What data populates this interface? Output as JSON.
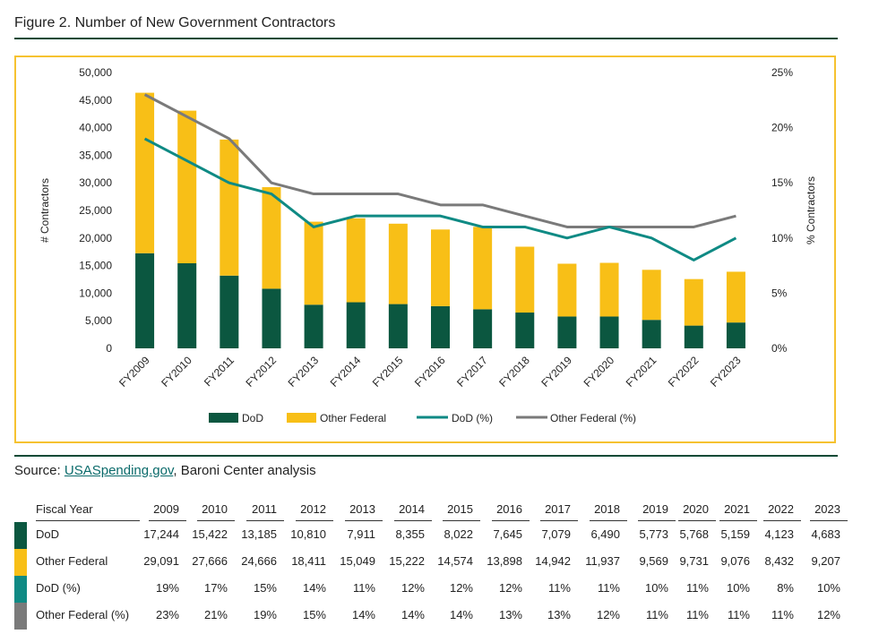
{
  "figure_title": "Figure 2. Number of New Government Contractors",
  "colors": {
    "dod": "#0b5740",
    "other_federal": "#f8bf17",
    "dod_pct": "#0f8a84",
    "other_federal_pct": "#7a7a7a",
    "frame": "#f6c230",
    "rule": "#0b4a36"
  },
  "source": {
    "label": "Source:",
    "link_text": "USASpending.gov",
    "rest": ", Baroni Center analysis"
  },
  "chart_data": {
    "type": "bar",
    "stacked": true,
    "categories": [
      "FY2009",
      "FY2010",
      "FY2011",
      "FY2012",
      "FY2013",
      "FY2014",
      "FY2015",
      "FY2016",
      "FY2017",
      "FY2018",
      "FY2019",
      "FY2020",
      "FY2021",
      "FY2022",
      "FY2023"
    ],
    "series": [
      {
        "name": "DoD",
        "type": "bar",
        "axis": "left",
        "values": [
          17244,
          15422,
          13185,
          10810,
          7911,
          8355,
          8022,
          7645,
          7079,
          6490,
          5773,
          5768,
          5159,
          4123,
          4683
        ]
      },
      {
        "name": "Other Federal",
        "type": "bar",
        "axis": "left",
        "values": [
          29091,
          27666,
          24666,
          18411,
          15049,
          15222,
          14574,
          13898,
          14942,
          11937,
          9569,
          9731,
          9076,
          8432,
          9207
        ]
      },
      {
        "name": "DoD (%)",
        "type": "line",
        "axis": "right",
        "values": [
          19,
          17,
          15,
          14,
          11,
          12,
          12,
          12,
          11,
          11,
          10,
          11,
          10,
          8,
          10
        ]
      },
      {
        "name": "Other Federal (%)",
        "type": "line",
        "axis": "right",
        "values": [
          23,
          21,
          19,
          15,
          14,
          14,
          14,
          13,
          13,
          12,
          11,
          11,
          11,
          11,
          12
        ]
      }
    ],
    "ylabel": "# Contractors",
    "y2label": "% Contractors",
    "ylim": [
      0,
      50000
    ],
    "y2lim": [
      0,
      25
    ],
    "yticks": [
      "0",
      "5,000",
      "10,000",
      "15,000",
      "20,000",
      "25,000",
      "30,000",
      "35,000",
      "40,000",
      "45,000",
      "50,000"
    ],
    "y2ticks": [
      "0%",
      "5%",
      "10%",
      "15%",
      "20%",
      "25%"
    ],
    "grid": false,
    "legend": "bottom"
  },
  "table": {
    "header_label": "Fiscal Year",
    "years": [
      "2009",
      "2010",
      "2011",
      "2012",
      "2013",
      "2014",
      "2015",
      "2016",
      "2017",
      "2018",
      "2019",
      "2020",
      "2021",
      "2022",
      "2023"
    ],
    "rows": [
      {
        "label": "DoD",
        "values": [
          "17,244",
          "15,422",
          "13,185",
          "10,810",
          "7,911",
          "8,355",
          "8,022",
          "7,645",
          "7,079",
          "6,490",
          "5,773",
          "5,768",
          "5,159",
          "4,123",
          "4,683"
        ]
      },
      {
        "label": "Other Federal",
        "values": [
          "29,091",
          "27,666",
          "24,666",
          "18,411",
          "15,049",
          "15,222",
          "14,574",
          "13,898",
          "14,942",
          "11,937",
          "9,569",
          "9,731",
          "9,076",
          "8,432",
          "9,207"
        ]
      },
      {
        "label": "DoD (%)",
        "values": [
          "19%",
          "17%",
          "15%",
          "14%",
          "11%",
          "12%",
          "12%",
          "12%",
          "11%",
          "11%",
          "10%",
          "11%",
          "10%",
          "8%",
          "10%"
        ]
      },
      {
        "label": "Other Federal (%)",
        "values": [
          "23%",
          "21%",
          "19%",
          "15%",
          "14%",
          "14%",
          "14%",
          "13%",
          "13%",
          "12%",
          "11%",
          "11%",
          "11%",
          "11%",
          "12%"
        ]
      }
    ]
  }
}
